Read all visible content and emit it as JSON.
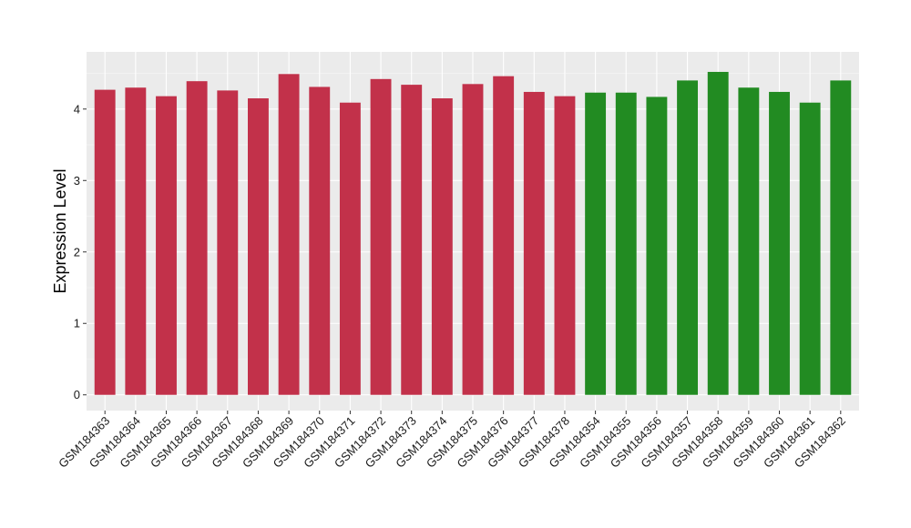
{
  "chart_data": {
    "type": "bar",
    "title": "",
    "xlabel": "",
    "ylabel": "Expression Level",
    "ylim": [
      -0.22,
      4.8
    ],
    "yticks": [
      0,
      1,
      2,
      3,
      4
    ],
    "grid": true,
    "panel_background": "#ebebeb",
    "categories": [
      "GSM184363",
      "GSM184364",
      "GSM184365",
      "GSM184366",
      "GSM184367",
      "GSM184368",
      "GSM184369",
      "GSM184370",
      "GSM184371",
      "GSM184372",
      "GSM184373",
      "GSM184374",
      "GSM184375",
      "GSM184376",
      "GSM184377",
      "GSM184378",
      "GSM184354",
      "GSM184355",
      "GSM184356",
      "GSM184357",
      "GSM184358",
      "GSM184359",
      "GSM184360",
      "GSM184361",
      "GSM184362"
    ],
    "values": [
      4.27,
      4.3,
      4.18,
      4.39,
      4.26,
      4.15,
      4.49,
      4.31,
      4.09,
      4.42,
      4.34,
      4.15,
      4.35,
      4.46,
      4.24,
      4.18,
      4.23,
      4.23,
      4.17,
      4.4,
      4.52,
      4.3,
      4.24,
      4.09,
      4.4
    ],
    "groups": [
      "a",
      "a",
      "a",
      "a",
      "a",
      "a",
      "a",
      "a",
      "a",
      "a",
      "a",
      "a",
      "a",
      "a",
      "a",
      "a",
      "b",
      "b",
      "b",
      "b",
      "b",
      "b",
      "b",
      "b",
      "b"
    ],
    "group_colors": {
      "a": "#c2314a",
      "b": "#228b22"
    }
  }
}
